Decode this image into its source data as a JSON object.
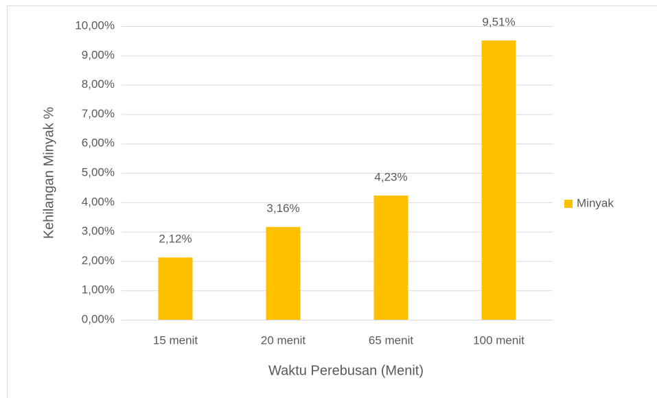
{
  "chart_data": {
    "type": "bar",
    "categories": [
      "15 menit",
      "20 menit",
      "65 menit",
      "100 menit"
    ],
    "series": [
      {
        "name": "Minyak",
        "color": "#ffc000",
        "values": [
          2.12,
          3.16,
          4.23,
          9.51
        ],
        "value_labels": [
          "2,12%",
          "3,16%",
          "4,23%",
          "9,51%"
        ]
      }
    ],
    "x_label": "Waktu Perebusan (Menit)",
    "y_label": "Kehilangan Minyak %",
    "ylim": [
      0,
      10
    ],
    "yticks": [
      {
        "value": 0,
        "label": "0,00%"
      },
      {
        "value": 1,
        "label": "1,00%"
      },
      {
        "value": 2,
        "label": "2,00%"
      },
      {
        "value": 3,
        "label": "3,00%"
      },
      {
        "value": 4,
        "label": "4,00%"
      },
      {
        "value": 5,
        "label": "5,00%"
      },
      {
        "value": 6,
        "label": "6,00%"
      },
      {
        "value": 7,
        "label": "7,00%"
      },
      {
        "value": 8,
        "label": "8,00%"
      },
      {
        "value": 9,
        "label": "9,00%"
      },
      {
        "value": 10,
        "label": "10,00%"
      }
    ],
    "grid": true,
    "legend": "right"
  }
}
